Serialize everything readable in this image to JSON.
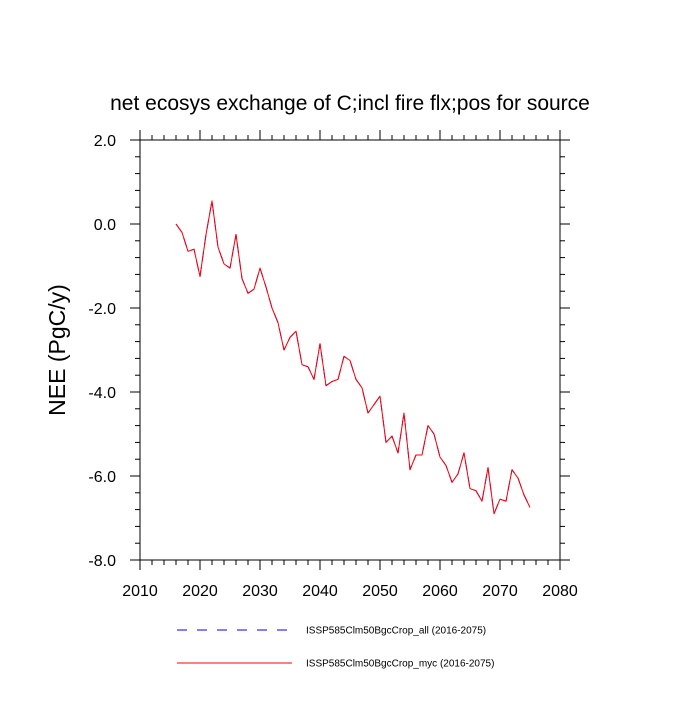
{
  "chart_data": {
    "type": "line",
    "title": "net ecosys exchange of C;incl fire flx;pos for source",
    "xlabel": "",
    "ylabel": "NEE  (PgC/y)",
    "xlim": [
      2010,
      2080
    ],
    "ylim": [
      -8.0,
      2.0
    ],
    "x_major_ticks": [
      2010,
      2020,
      2030,
      2040,
      2050,
      2060,
      2070,
      2080
    ],
    "x_tick_labels": [
      "2010",
      "2020",
      "2030",
      "2040",
      "2050",
      "2060",
      "2070",
      "2080"
    ],
    "y_major_ticks": [
      -8.0,
      -6.0,
      -4.0,
      -2.0,
      0.0,
      2.0
    ],
    "y_tick_labels": [
      "-8.0",
      "-6.0",
      "-4.0",
      "-2.0",
      "0.0",
      "2.0"
    ],
    "x_minor_step": 2,
    "y_minor_step": 0.4,
    "grid": false,
    "legend_position": "bottom",
    "x": [
      2016,
      2017,
      2018,
      2019,
      2020,
      2021,
      2022,
      2023,
      2024,
      2025,
      2026,
      2027,
      2028,
      2029,
      2030,
      2031,
      2032,
      2033,
      2034,
      2035,
      2036,
      2037,
      2038,
      2039,
      2040,
      2041,
      2042,
      2043,
      2044,
      2045,
      2046,
      2047,
      2048,
      2049,
      2050,
      2051,
      2052,
      2053,
      2054,
      2055,
      2056,
      2057,
      2058,
      2059,
      2060,
      2061,
      2062,
      2063,
      2064,
      2065,
      2066,
      2067,
      2068,
      2069,
      2070,
      2071,
      2072,
      2073,
      2074,
      2075
    ],
    "series": [
      {
        "name": "ISSP585Clm50BgcCrop_all (2016-2075)",
        "color": "#0000ff",
        "dash": "dashed",
        "values": [
          0.0,
          -0.2,
          -0.65,
          -0.6,
          -1.25,
          -0.25,
          0.55,
          -0.55,
          -0.95,
          -1.05,
          -0.25,
          -1.3,
          -1.65,
          -1.55,
          -1.05,
          -1.5,
          -2.0,
          -2.35,
          -3.0,
          -2.7,
          -2.55,
          -3.35,
          -3.4,
          -3.7,
          -2.85,
          -3.85,
          -3.75,
          -3.7,
          -3.15,
          -3.25,
          -3.7,
          -3.9,
          -4.5,
          -4.3,
          -4.1,
          -5.2,
          -5.05,
          -5.45,
          -4.5,
          -5.85,
          -5.5,
          -5.5,
          -4.8,
          -5.0,
          -5.55,
          -5.75,
          -6.15,
          -5.95,
          -5.45,
          -6.3,
          -6.35,
          -6.6,
          -5.8,
          -6.9,
          -6.55,
          -6.6,
          -5.85,
          -6.05,
          -6.45,
          -6.75
        ]
      },
      {
        "name": "ISSP585Clm50BgcCrop_myc (2016-2075)",
        "color": "#ff0000",
        "dash": "solid",
        "values": [
          0.0,
          -0.2,
          -0.65,
          -0.6,
          -1.25,
          -0.25,
          0.55,
          -0.55,
          -0.95,
          -1.05,
          -0.25,
          -1.3,
          -1.65,
          -1.55,
          -1.05,
          -1.5,
          -2.0,
          -2.35,
          -3.0,
          -2.7,
          -2.55,
          -3.35,
          -3.4,
          -3.7,
          -2.85,
          -3.85,
          -3.75,
          -3.7,
          -3.15,
          -3.25,
          -3.7,
          -3.9,
          -4.5,
          -4.3,
          -4.1,
          -5.2,
          -5.05,
          -5.45,
          -4.5,
          -5.85,
          -5.5,
          -5.5,
          -4.8,
          -5.0,
          -5.55,
          -5.75,
          -6.15,
          -5.95,
          -5.45,
          -6.3,
          -6.35,
          -6.6,
          -5.8,
          -6.9,
          -6.55,
          -6.6,
          -5.85,
          -6.05,
          -6.45,
          -6.75
        ]
      }
    ]
  }
}
